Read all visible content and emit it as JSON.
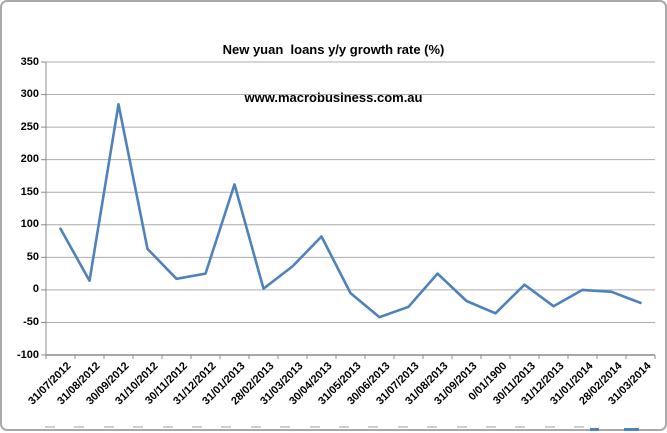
{
  "chart_data": {
    "type": "line",
    "title": "New yuan  loans y/y growth rate (%)",
    "subtitle": "www.macrobusiness.com.au",
    "categories": [
      "31/07/2012",
      "31/08/2012",
      "30/09/2012",
      "31/10/2012",
      "30/11/2012",
      "31/12/2012",
      "31/01/2013",
      "28/02/2013",
      "31/03/2013",
      "30/04/2013",
      "31/05/2013",
      "30/06/2013",
      "31/07/2013",
      "31/08/2013",
      "31/09/2013",
      "0/01/1900",
      "30/11/2013",
      "31/12/2013",
      "31/01/2014",
      "28/02/2014",
      "31/03/2014"
    ],
    "values": [
      94,
      14,
      285,
      63,
      17,
      25,
      162,
      2,
      36,
      82,
      -5,
      -42,
      -26,
      25,
      -17,
      -36,
      8,
      -25,
      0,
      -3,
      -20
    ],
    "xlabel": "",
    "ylabel": "",
    "ylim": [
      -100,
      350
    ],
    "ytick_step": 50,
    "y_tick_labels": [
      "350",
      "300",
      "250",
      "200",
      "150",
      "100",
      "50",
      "0",
      "-50",
      "-100"
    ],
    "grid": true,
    "legend": false,
    "colors": {
      "line": "#4F81BD",
      "gridline": "#ACACAC",
      "axis": "#8C8C8C",
      "text": "#000000",
      "border": "#A9A9A9",
      "artifact": "#CFCFCF",
      "background": "#FFFFFF"
    }
  }
}
